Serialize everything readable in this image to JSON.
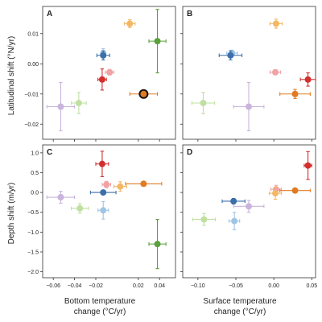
{
  "chart_data": {
    "type": "scatter",
    "y_labels": {
      "top": "Latitudinal shift (°N/yr)",
      "bottom": "Depth shift (m/yr)"
    },
    "x_labels": {
      "left": [
        "Bottom temperature",
        "change (°C/yr)"
      ],
      "right": [
        "Surface temperature",
        "change (°C/yr)"
      ]
    },
    "axes": {
      "x_bottom_temp": {
        "lim": [
          -0.07,
          0.055
        ],
        "ticks": [
          -0.06,
          -0.04,
          -0.02,
          0.02,
          0.04
        ],
        "tick_labels": [
          "−0.06",
          "−0.04",
          "−0.02",
          "0.02",
          "0.04"
        ]
      },
      "x_surface_temp": {
        "lim": [
          -0.12,
          0.055
        ],
        "ticks": [
          -0.1,
          -0.05,
          0.0,
          0.05
        ],
        "tick_labels": [
          "−0.10",
          "−0.05",
          "0.00",
          "0.05"
        ]
      },
      "y_latitude": {
        "lim": [
          -0.025,
          0.019
        ],
        "ticks": [
          -0.02,
          -0.01,
          0.0,
          0.01
        ],
        "tick_labels": [
          "−0.02",
          "−0.01",
          "0.00",
          "0.01"
        ]
      },
      "y_depth": {
        "lim": [
          -2.15,
          1.2
        ],
        "ticks": [
          -2.0,
          -1.5,
          -1.0,
          -0.5,
          0.0,
          0.5,
          1.0
        ],
        "tick_labels": [
          "−2.0",
          "−1.5",
          "−1.0",
          "−0.5",
          "0.0",
          "0.5",
          "1.0"
        ]
      }
    },
    "panels": [
      {
        "letter": "A",
        "xaxis": "x_bottom_temp",
        "yaxis": "y_latitude",
        "points": [
          {
            "x": 0.012,
            "y": 0.0133,
            "xerr": 0.005,
            "yerr": 0.0013,
            "color": "#f2b866"
          },
          {
            "x": 0.038,
            "y": 0.0075,
            "xerr": 0.008,
            "yerr": 0.0105,
            "color": "#5aa03d"
          },
          {
            "x": -0.013,
            "y": 0.0035,
            "xerr": 0.002,
            "yerr": 0.0015,
            "color": "#9fc5e5"
          },
          {
            "x": -0.013,
            "y": 0.0028,
            "xerr": 0.006,
            "yerr": 0.0015,
            "color": "#3c6ea8"
          },
          {
            "x": -0.007,
            "y": -0.0028,
            "xerr": 0.004,
            "yerr": 0.0009,
            "color": "#f0a2a5"
          },
          {
            "x": -0.014,
            "y": -0.0052,
            "xerr": 0.004,
            "yerr": 0.0035,
            "color": "#d32f2f"
          },
          {
            "x": 0.025,
            "y": -0.01,
            "xerr": 0.013,
            "yerr": 0.0007,
            "color": "#e07b23",
            "outline": true
          },
          {
            "x": -0.036,
            "y": -0.013,
            "xerr": 0.007,
            "yerr": 0.0035,
            "color": "#bfe0a0"
          },
          {
            "x": -0.053,
            "y": -0.0142,
            "xerr": 0.013,
            "yerr": 0.008,
            "color": "#c8b4dc"
          }
        ]
      },
      {
        "letter": "B",
        "xaxis": "x_surface_temp",
        "yaxis": "y_latitude",
        "points": [
          {
            "x": 0.003,
            "y": 0.0133,
            "xerr": 0.008,
            "yerr": 0.0015,
            "color": "#f2b866"
          },
          {
            "x": -0.055,
            "y": 0.0035,
            "xerr": 0.007,
            "yerr": 0.001,
            "color": "#9fc5e5"
          },
          {
            "x": -0.057,
            "y": 0.0028,
            "xerr": 0.015,
            "yerr": 0.0015,
            "color": "#3c6ea8"
          },
          {
            "x": 0.002,
            "y": -0.0028,
            "xerr": 0.007,
            "yerr": 0.0008,
            "color": "#f0a2a5"
          },
          {
            "x": 0.045,
            "y": -0.0052,
            "xerr": 0.01,
            "yerr": 0.0022,
            "color": "#d32f2f"
          },
          {
            "x": 0.028,
            "y": -0.01,
            "xerr": 0.02,
            "yerr": 0.0015,
            "color": "#e07b23"
          },
          {
            "x": -0.093,
            "y": -0.013,
            "xerr": 0.015,
            "yerr": 0.0035,
            "color": "#bfe0a0"
          },
          {
            "x": -0.033,
            "y": -0.0142,
            "xerr": 0.02,
            "yerr": 0.008,
            "color": "#c8b4dc"
          }
        ]
      },
      {
        "letter": "C",
        "xaxis": "x_bottom_temp",
        "yaxis": "y_depth",
        "points": [
          {
            "x": -0.014,
            "y": 0.72,
            "xerr": 0.006,
            "yerr": 0.32,
            "color": "#d32f2f"
          },
          {
            "x": -0.01,
            "y": 0.2,
            "xerr": 0.004,
            "yerr": 0.08,
            "color": "#f0a2a5"
          },
          {
            "x": 0.025,
            "y": 0.22,
            "xerr": 0.017,
            "yerr": 0.05,
            "color": "#e07b23"
          },
          {
            "x": 0.003,
            "y": 0.15,
            "xerr": 0.006,
            "yerr": 0.12,
            "color": "#f2b866"
          },
          {
            "x": -0.013,
            "y": 0.0,
            "xerr": 0.012,
            "yerr": 0.05,
            "color": "#3c6ea8"
          },
          {
            "x": -0.053,
            "y": -0.12,
            "xerr": 0.013,
            "yerr": 0.15,
            "color": "#c8b4dc"
          },
          {
            "x": -0.035,
            "y": -0.4,
            "xerr": 0.008,
            "yerr": 0.12,
            "color": "#bfe0a0"
          },
          {
            "x": -0.013,
            "y": -0.45,
            "xerr": 0.005,
            "yerr": 0.22,
            "color": "#9fc5e5"
          },
          {
            "x": 0.038,
            "y": -1.3,
            "xerr": 0.008,
            "yerr": 0.62,
            "color": "#5aa03d"
          }
        ]
      },
      {
        "letter": "D",
        "xaxis": "x_surface_temp",
        "yaxis": "y_depth",
        "points": [
          {
            "x": 0.045,
            "y": 0.68,
            "xerr": 0.005,
            "yerr": 0.35,
            "color": "#d32f2f"
          },
          {
            "x": 0.003,
            "y": 0.08,
            "xerr": 0.007,
            "yerr": 0.1,
            "color": "#f0a2a5"
          },
          {
            "x": 0.002,
            "y": -0.02,
            "xerr": 0.008,
            "yerr": 0.15,
            "color": "#f2b866"
          },
          {
            "x": 0.028,
            "y": 0.05,
            "xerr": 0.02,
            "yerr": 0.05,
            "color": "#e07b23"
          },
          {
            "x": -0.053,
            "y": -0.22,
            "xerr": 0.015,
            "yerr": 0.07,
            "color": "#3c6ea8"
          },
          {
            "x": -0.033,
            "y": -0.35,
            "xerr": 0.02,
            "yerr": 0.15,
            "color": "#c8b4dc"
          },
          {
            "x": -0.092,
            "y": -0.68,
            "xerr": 0.015,
            "yerr": 0.15,
            "color": "#bfe0a0"
          },
          {
            "x": -0.052,
            "y": -0.72,
            "xerr": 0.007,
            "yerr": 0.22,
            "color": "#9fc5e5"
          }
        ]
      }
    ]
  }
}
